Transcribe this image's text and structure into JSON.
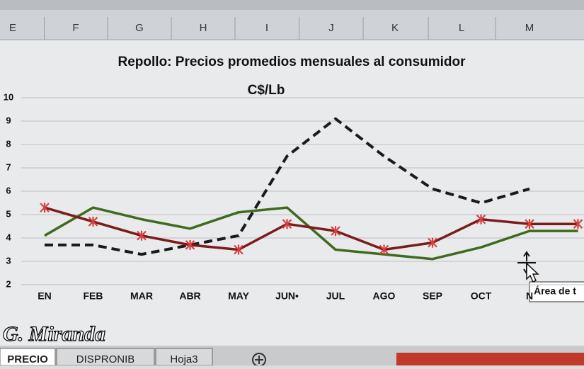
{
  "chart_data": {
    "type": "line",
    "title": "Repollo: Precios promedios mensuales al consumidor",
    "subtitle": "C$/Lb",
    "categories": [
      "EN",
      "FEB",
      "MAR",
      "ABR",
      "MAY",
      "JUN•",
      "JUL",
      "AGO",
      "SEP",
      "OCT",
      "N",
      null
    ],
    "series": [
      {
        "color": "#7a1c1c",
        "marker": "star",
        "dashed": false,
        "values": [
          5.3,
          4.7,
          4.1,
          3.7,
          3.5,
          4.6,
          4.3,
          3.5,
          3.8,
          4.8,
          4.6,
          4.6
        ]
      },
      {
        "color": "#3f6b1e",
        "marker": null,
        "dashed": false,
        "values": [
          4.1,
          5.3,
          4.8,
          4.4,
          5.1,
          5.3,
          3.5,
          3.3,
          3.1,
          3.6,
          4.3,
          4.3
        ]
      },
      {
        "color": "#1a1a1a",
        "marker": null,
        "dashed": true,
        "values": [
          3.7,
          3.7,
          3.3,
          3.7,
          4.1,
          7.5,
          9.1,
          7.5,
          6.1,
          5.5,
          6.1,
          null
        ]
      }
    ],
    "ylim": [
      2,
      10
    ],
    "yticks": [
      2,
      3,
      4,
      5,
      6,
      7,
      8,
      9,
      10
    ],
    "grid": true
  },
  "spreadsheet": {
    "columns": [
      "E",
      "F",
      "G",
      "H",
      "I",
      "J",
      "K",
      "L",
      "M"
    ],
    "tabs": [
      "PRECIO",
      "DISPRONIB",
      "Hoja3"
    ],
    "tooltip": "Área de t",
    "watermark": "G. Miranda"
  }
}
